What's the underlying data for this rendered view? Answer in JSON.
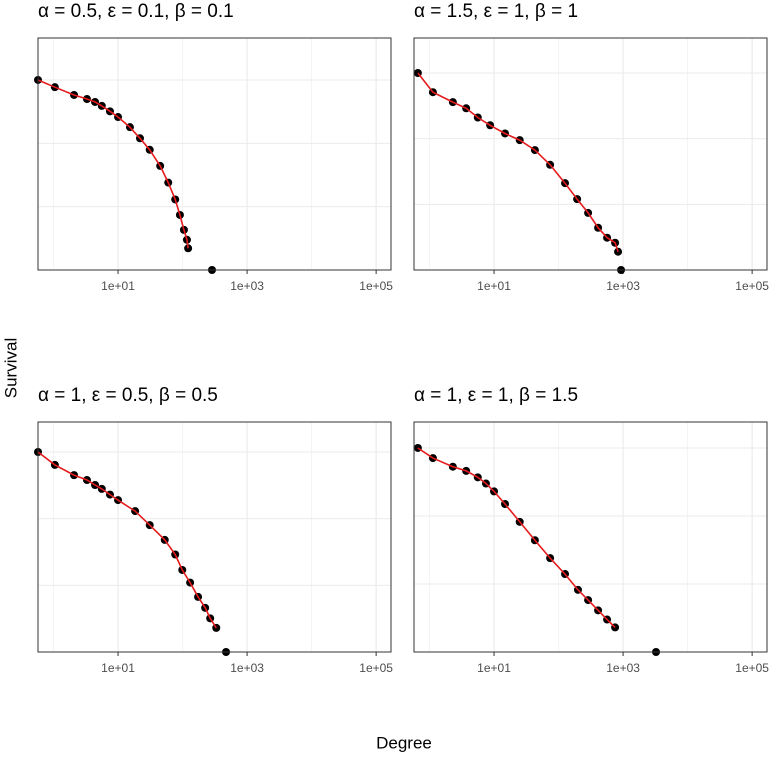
{
  "axis_labels": {
    "x": "Degree",
    "y": "Survival"
  },
  "chart_data": [
    {
      "type": "scatter",
      "title": "α = 0.5, ε = 0.1, β = 0.1",
      "xscale": "log",
      "yscale": "log",
      "xlim": [
        0.575,
        170000
      ],
      "ylim": [
        0.001,
        4.6
      ],
      "xticks": [
        {
          "value": 10,
          "label": "1e+01"
        },
        {
          "value": 1000,
          "label": "1e+03"
        },
        {
          "value": 100000,
          "label": "1e+05"
        }
      ],
      "xminor": [
        1,
        100,
        10000
      ],
      "ygrid": [
        0.001,
        0.01,
        0.1,
        1
      ],
      "grid": true,
      "series": [
        {
          "mark": "point",
          "color": "#000000",
          "x": [
            0.575,
            1.05,
            2.08,
            3.3,
            4.4,
            5.6,
            7.5,
            10,
            15.3,
            21.9,
            31,
            45,
            60,
            77,
            91,
            105,
            117,
            122,
            286
          ],
          "values": [
            1,
            0.77,
            0.58,
            0.5,
            0.45,
            0.39,
            0.32,
            0.26,
            0.18,
            0.12,
            0.079,
            0.044,
            0.024,
            0.013,
            0.0074,
            0.0043,
            0.003,
            0.0022,
            0.001
          ]
        },
        {
          "mark": "line",
          "color": "#e41a1c",
          "x": [
            0.575,
            1.05,
            2.08,
            3.3,
            4.4,
            5.6,
            7.5,
            10,
            15.3,
            21.9,
            31,
            45,
            60,
            77,
            91,
            105,
            117,
            122
          ],
          "values": [
            1,
            0.77,
            0.58,
            0.5,
            0.45,
            0.39,
            0.32,
            0.26,
            0.18,
            0.12,
            0.079,
            0.044,
            0.024,
            0.013,
            0.0074,
            0.0043,
            0.003,
            0.0022
          ]
        }
      ]
    },
    {
      "type": "scatter",
      "title": "α = 1.5, ε = 1, β = 1",
      "xscale": "log",
      "yscale": "log",
      "xlim": [
        0.575,
        170000
      ],
      "ylim": [
        0.001,
        3.41
      ],
      "xticks": [
        {
          "value": 10,
          "label": "1e+01"
        },
        {
          "value": 1000,
          "label": "1e+03"
        },
        {
          "value": 100000,
          "label": "1e+05"
        }
      ],
      "xminor": [
        1,
        100,
        10000
      ],
      "ygrid": [
        0.001,
        0.01,
        0.1,
        1
      ],
      "grid": true,
      "series": [
        {
          "mark": "point",
          "color": "#000000",
          "x": [
            0.66,
            1.13,
            2.3,
            3.7,
            5.6,
            8.7,
            14.8,
            25,
            43,
            74,
            126,
            194,
            287,
            410,
            565,
            752,
            836,
            930
          ],
          "values": [
            1,
            0.51,
            0.36,
            0.29,
            0.21,
            0.16,
            0.12,
            0.095,
            0.067,
            0.04,
            0.021,
            0.012,
            0.0074,
            0.0044,
            0.0031,
            0.0026,
            0.0019,
            0.001
          ]
        },
        {
          "mark": "line",
          "color": "#e41a1c",
          "x": [
            0.66,
            1.13,
            2.3,
            3.7,
            5.6,
            8.7,
            14.8,
            25,
            43,
            74,
            126,
            194,
            287,
            410,
            565,
            752,
            836
          ],
          "values": [
            1,
            0.51,
            0.36,
            0.29,
            0.21,
            0.16,
            0.12,
            0.095,
            0.067,
            0.04,
            0.021,
            0.012,
            0.0074,
            0.0044,
            0.0031,
            0.0026,
            0.0019
          ]
        }
      ]
    },
    {
      "type": "scatter",
      "title": "α = 1, ε = 0.5, β = 0.5",
      "xscale": "log",
      "yscale": "log",
      "xlim": [
        0.575,
        170000
      ],
      "ylim": [
        0.001,
        2.82
      ],
      "xticks": [
        {
          "value": 10,
          "label": "1e+01"
        },
        {
          "value": 1000,
          "label": "1e+03"
        },
        {
          "value": 100000,
          "label": "1e+05"
        }
      ],
      "xminor": [
        1,
        100,
        10000
      ],
      "ygrid": [
        0.001,
        0.01,
        0.1,
        1
      ],
      "grid": true,
      "series": [
        {
          "mark": "point",
          "color": "#000000",
          "x": [
            0.575,
            1.05,
            2.08,
            3.3,
            4.4,
            5.6,
            7.5,
            10,
            18.4,
            31,
            53,
            77,
            99,
            131,
            174,
            224,
            268,
            333,
            472
          ],
          "values": [
            1,
            0.64,
            0.45,
            0.38,
            0.32,
            0.28,
            0.23,
            0.19,
            0.13,
            0.08,
            0.048,
            0.029,
            0.017,
            0.011,
            0.0067,
            0.0046,
            0.0032,
            0.0023,
            0.001
          ]
        },
        {
          "mark": "line",
          "color": "#e41a1c",
          "x": [
            0.575,
            1.05,
            2.08,
            3.3,
            4.4,
            5.6,
            7.5,
            10,
            18.4,
            31,
            53,
            77,
            99,
            131,
            174,
            224,
            268,
            333
          ],
          "values": [
            1,
            0.64,
            0.45,
            0.38,
            0.32,
            0.28,
            0.23,
            0.19,
            0.13,
            0.08,
            0.048,
            0.029,
            0.017,
            0.011,
            0.0067,
            0.0046,
            0.0032,
            0.0023
          ]
        }
      ]
    },
    {
      "type": "scatter",
      "title": "α = 1, ε = 1, β = 1.5",
      "xscale": "log",
      "yscale": "log",
      "xlim": [
        0.575,
        170000
      ],
      "ylim": [
        0.001,
        2.41
      ],
      "xticks": [
        {
          "value": 10,
          "label": "1e+01"
        },
        {
          "value": 1000,
          "label": "1e+03"
        },
        {
          "value": 100000,
          "label": "1e+05"
        }
      ],
      "xminor": [
        1,
        100,
        10000
      ],
      "ygrid": [
        0.001,
        0.01,
        0.1,
        1
      ],
      "grid": true,
      "series": [
        {
          "mark": "point",
          "color": "#000000",
          "x": [
            0.66,
            1.13,
            2.3,
            3.7,
            5.6,
            7.5,
            10,
            14.8,
            25,
            43,
            74,
            126,
            200,
            287,
            410,
            565,
            752,
            3240
          ],
          "values": [
            1,
            0.71,
            0.53,
            0.46,
            0.37,
            0.3,
            0.23,
            0.15,
            0.082,
            0.044,
            0.024,
            0.014,
            0.0082,
            0.0058,
            0.0041,
            0.003,
            0.0023,
            0.001
          ]
        },
        {
          "mark": "line",
          "color": "#e41a1c",
          "x": [
            0.66,
            1.13,
            2.3,
            3.7,
            5.6,
            7.5,
            10,
            14.8,
            25,
            43,
            74,
            126,
            200,
            287,
            410,
            565,
            752
          ],
          "values": [
            1,
            0.71,
            0.53,
            0.46,
            0.37,
            0.3,
            0.23,
            0.15,
            0.082,
            0.044,
            0.024,
            0.014,
            0.0082,
            0.0058,
            0.0041,
            0.003,
            0.0023
          ]
        }
      ]
    }
  ]
}
